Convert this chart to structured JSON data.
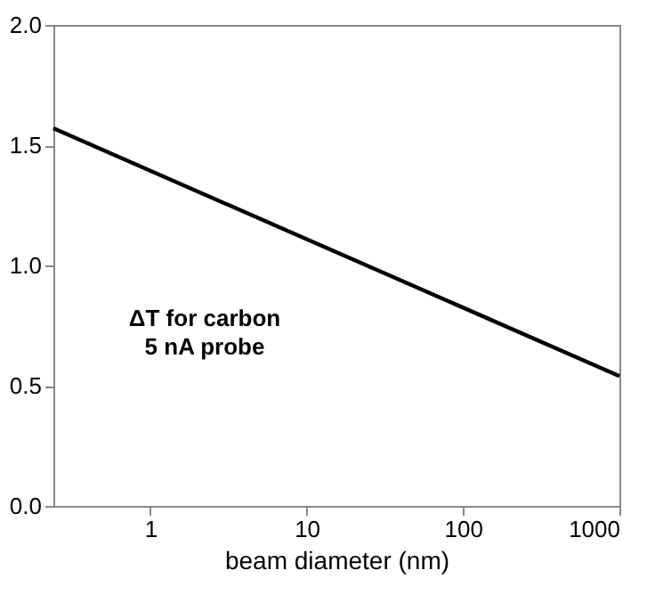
{
  "chart_data": {
    "type": "line",
    "xlabel": "beam diameter (nm)",
    "log": "x",
    "grid": false,
    "marker": "none",
    "line_style": "solid",
    "x": [
      0.24,
      1000
    ],
    "series": [
      {
        "color": "#000000",
        "values": [
          1.57,
          0.54
        ]
      }
    ],
    "xlim": [
      0.24,
      1000
    ],
    "xticks": [
      1,
      10,
      100,
      1000
    ],
    "ylim": [
      0,
      2
    ],
    "yticks": [
      {
        "value": 0,
        "label": "0.0"
      },
      {
        "value": 0.5,
        "label": "0.5"
      },
      {
        "value": 1,
        "label": "1.0"
      },
      {
        "value": 1.5,
        "label": "1.5"
      },
      {
        "value": 2,
        "label": "2.0"
      }
    ],
    "annotations": [
      "ΔT for carbon\n5 nA probe"
    ]
  }
}
